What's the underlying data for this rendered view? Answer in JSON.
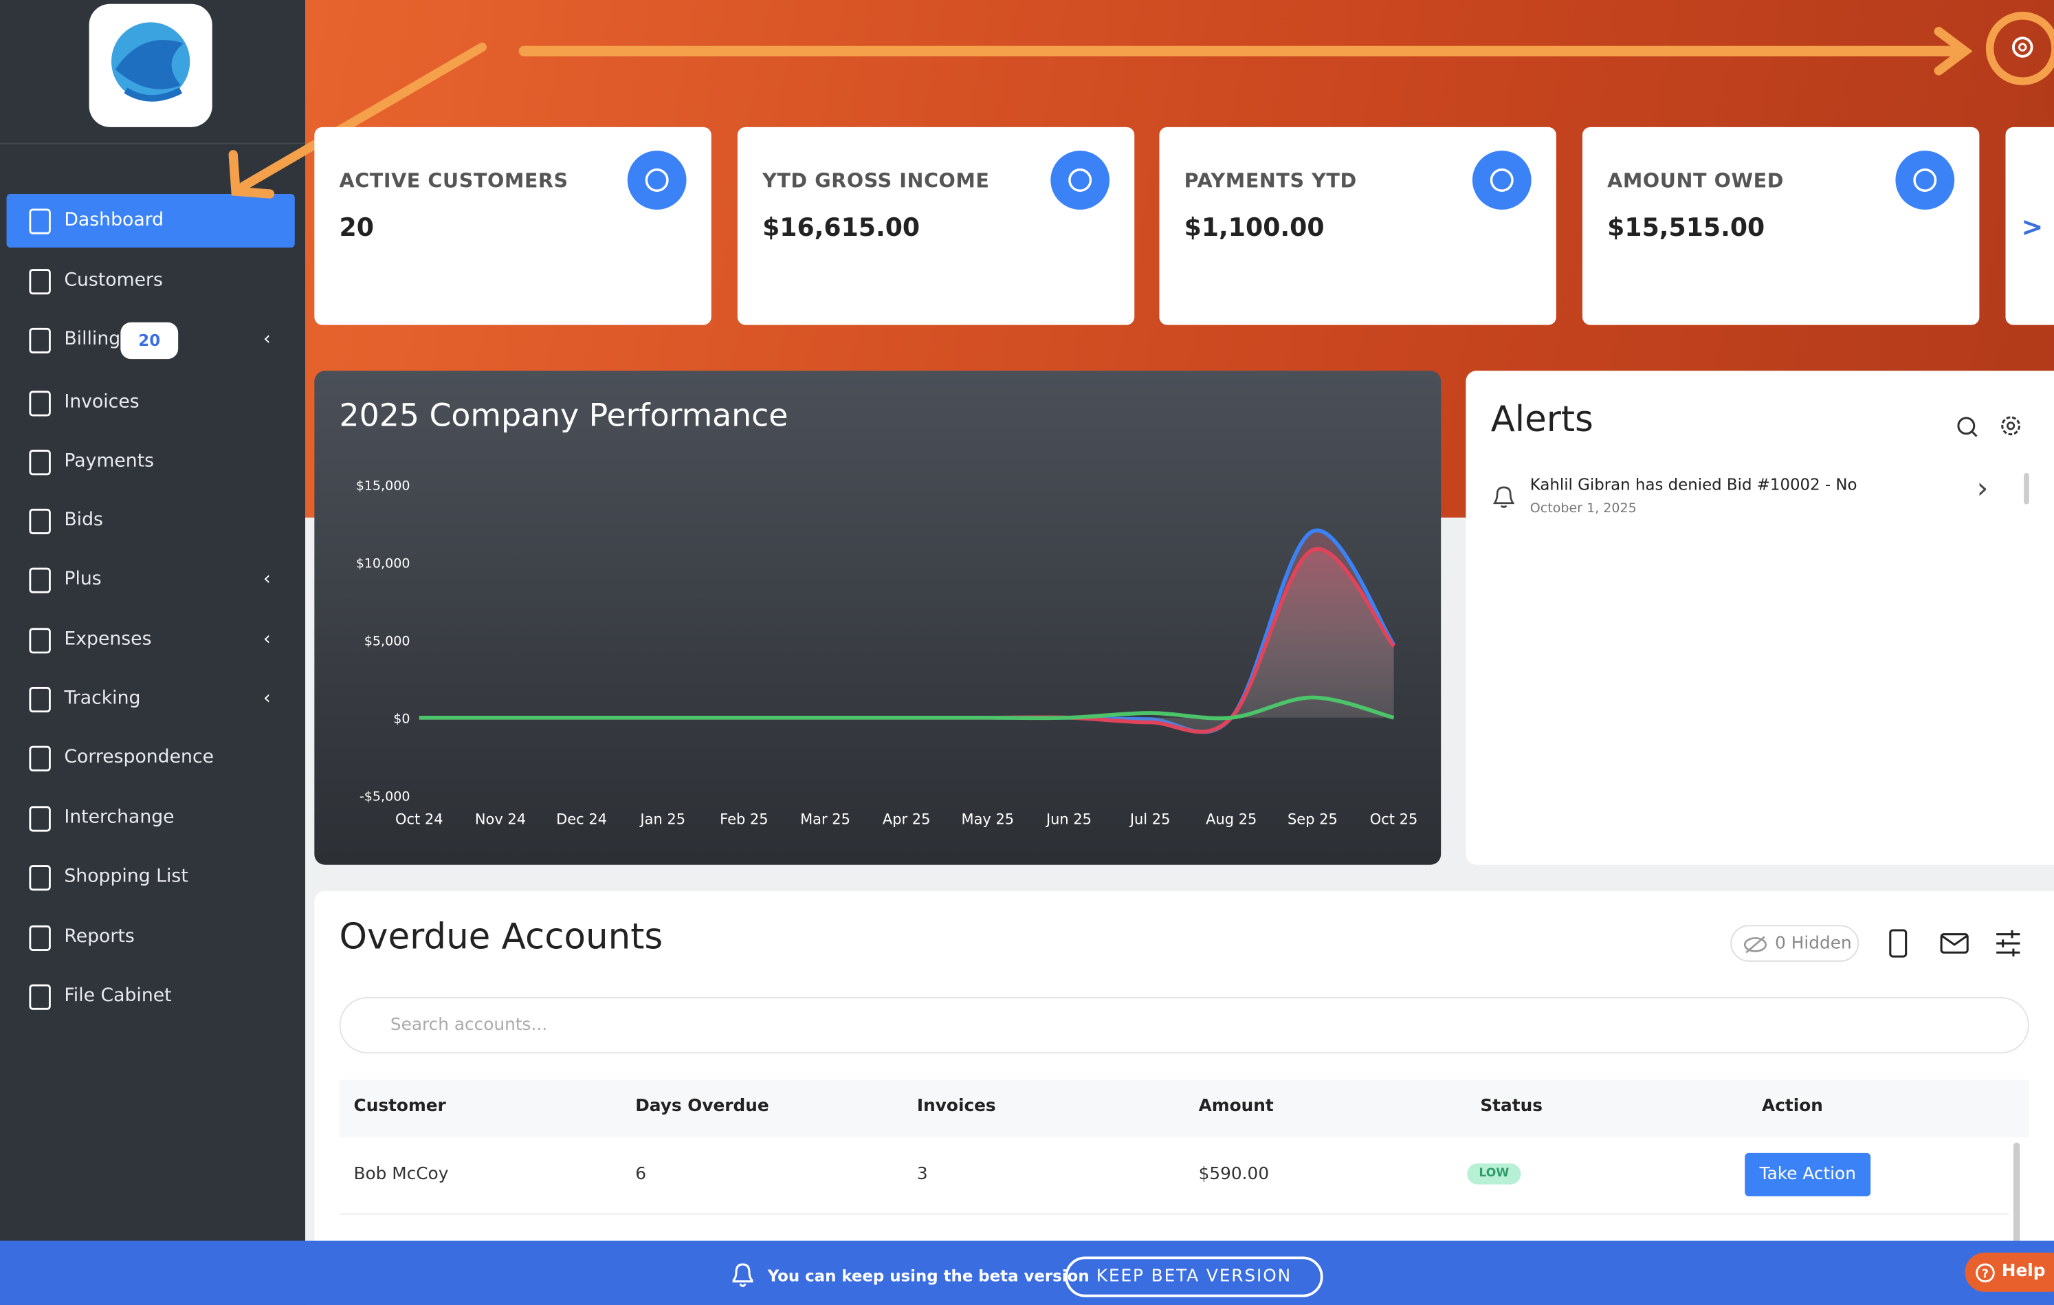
{
  "sidebar": {
    "menu": [
      "Dashboard",
      "Customers",
      "Billing",
      "Invoices",
      "Payments",
      "Bids",
      "Plus",
      "Expenses",
      "Tracking",
      "Correspondence",
      "Interchange",
      "Shopping List",
      "Reports",
      "File Cabinet"
    ],
    "billing_badge": "20"
  },
  "cards": [
    {
      "title": "ACTIVE CUSTOMERS",
      "value": "20"
    },
    {
      "title": "YTD GROSS INCOME",
      "value": "$16,615.00"
    },
    {
      "title": "PAYMENTS YTD",
      "value": "$1,100.00"
    },
    {
      "title": "AMOUNT OWED",
      "value": "$15,515.00"
    }
  ],
  "cards_next": ">",
  "chart_data": {
    "type": "line",
    "title": "2025 Company Performance",
    "categories": [
      "Oct 24",
      "Nov 24",
      "Dec 24",
      "Jan 25",
      "Feb 25",
      "Mar 25",
      "Apr 25",
      "May 25",
      "Jun 25",
      "Jul 25",
      "Aug 25",
      "Sep 25",
      "Oct 25"
    ],
    "series": [
      {
        "color": "#3b82f6",
        "values": [
          0,
          0,
          0,
          0,
          0,
          0,
          0,
          0,
          0,
          -100,
          0,
          12000,
          4700
        ]
      },
      {
        "color": "#e0445a",
        "values": [
          0,
          0,
          0,
          0,
          0,
          0,
          0,
          0,
          0,
          -300,
          0,
          10800,
          4600
        ]
      },
      {
        "color": "#4cc46a",
        "values": [
          0,
          0,
          0,
          0,
          0,
          0,
          0,
          0,
          0,
          300,
          0,
          1300,
          0
        ]
      }
    ],
    "ylim": [
      -5000,
      15000
    ],
    "yticks": [
      {
        "value": -5000,
        "label": "-$5,000"
      },
      {
        "value": 0,
        "label": "$0"
      },
      {
        "value": 5000,
        "label": "$5,000"
      },
      {
        "value": 10000,
        "label": "$10,000"
      },
      {
        "value": 15000,
        "label": "$15,000"
      }
    ]
  },
  "alerts": {
    "title": "Alerts",
    "items": [
      {
        "text": "Kahlil Gibran has denied Bid #10002 - No",
        "date": "October 1, 2025"
      }
    ]
  },
  "overdue": {
    "title": "Overdue Accounts",
    "hidden": "0 Hidden",
    "search_placeholder": "Search accounts...",
    "columns": [
      "Customer",
      "Days Overdue",
      "Invoices",
      "Amount",
      "Status",
      "Action"
    ],
    "rows": [
      [
        "Bob McCoy",
        "6",
        "3",
        "$590.00",
        "LOW",
        "Take Action"
      ]
    ]
  },
  "banner": {
    "text": "You can keep using the beta version",
    "button": "KEEP BETA VERSION"
  },
  "help": "Help"
}
